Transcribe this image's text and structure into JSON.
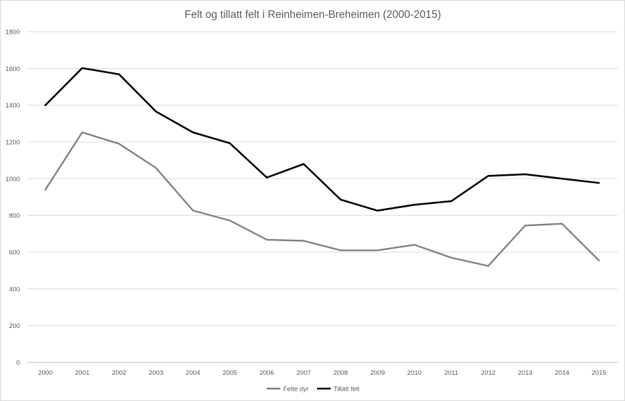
{
  "chart_data": {
    "type": "line",
    "title": "Felt og tillatt felt i Reinheimen-Breheimen (2000-2015)",
    "xlabel": "",
    "ylabel": "",
    "categories": [
      "2000",
      "2001",
      "2002",
      "2003",
      "2004",
      "2005",
      "2006",
      "2007",
      "2008",
      "2009",
      "2010",
      "2011",
      "2012",
      "2013",
      "2014",
      "2015"
    ],
    "ylim": [
      0,
      1800
    ],
    "yticks": [
      0,
      200,
      400,
      600,
      800,
      1000,
      1200,
      1400,
      1600,
      1800
    ],
    "grid": true,
    "legend_position": "bottom",
    "series": [
      {
        "name": "Felte dyr",
        "color": "#7f7f7f",
        "values": [
          940,
          1252,
          1190,
          1058,
          827,
          772,
          668,
          662,
          610,
          610,
          640,
          570,
          525,
          745,
          755,
          555
        ]
      },
      {
        "name": "Tillatt felt",
        "color": "#000000",
        "values": [
          1400,
          1602,
          1568,
          1365,
          1252,
          1193,
          1006,
          1080,
          886,
          826,
          858,
          878,
          1015,
          1024,
          1000,
          977
        ]
      }
    ]
  }
}
